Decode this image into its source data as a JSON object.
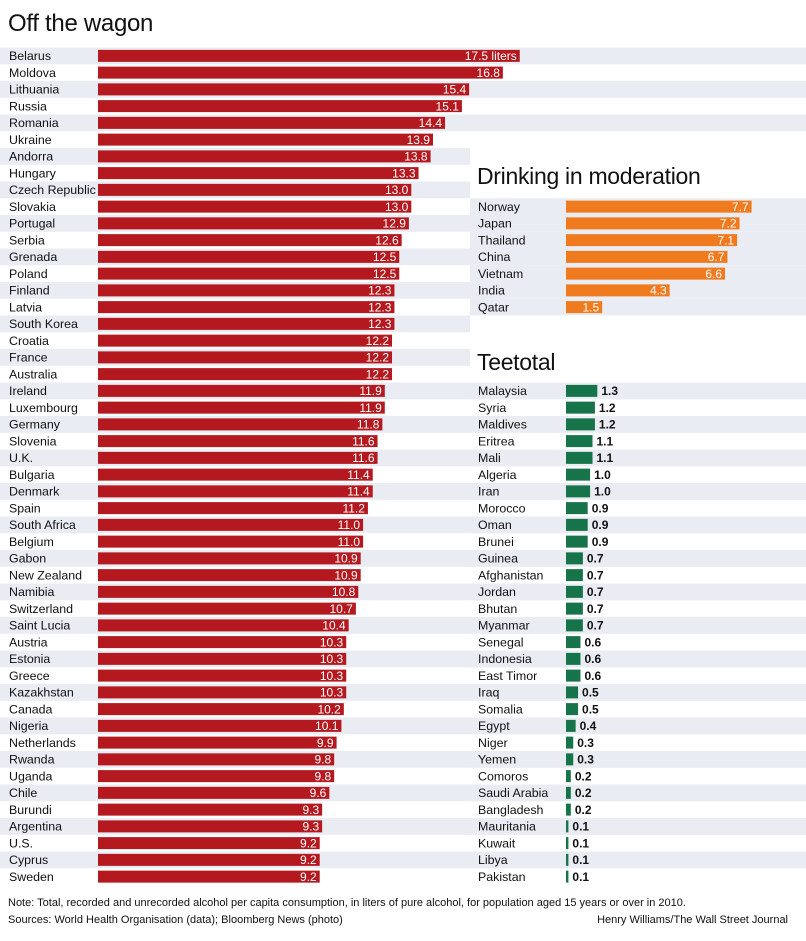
{
  "header": {
    "title": "Off the wagon"
  },
  "chart_data": [
    {
      "type": "bar",
      "orientation": "horizontal",
      "title": "Off the wagon",
      "unit_label": "liters",
      "color": "#b3191e",
      "xlim": [
        0,
        20
      ],
      "categories": [
        "Belarus",
        "Moldova",
        "Lithuania",
        "Russia",
        "Romania",
        "Ukraine",
        "Andorra",
        "Hungary",
        "Czech Republic",
        "Slovakia",
        "Portugal",
        "Serbia",
        "Grenada",
        "Poland",
        "Finland",
        "Latvia",
        "South Korea",
        "Croatia",
        "France",
        "Australia",
        "Ireland",
        "Luxembourg",
        "Germany",
        "Slovenia",
        "U.K.",
        "Bulgaria",
        "Denmark",
        "Spain",
        "South Africa",
        "Belgium",
        "Gabon",
        "New Zealand",
        "Namibia",
        "Switzerland",
        "Saint Lucia",
        "Austria",
        "Estonia",
        "Greece",
        "Kazakhstan",
        "Canada",
        "Nigeria",
        "Netherlands",
        "Rwanda",
        "Uganda",
        "Chile",
        "Burundi",
        "Argentina",
        "U.S.",
        "Cyprus",
        "Sweden"
      ],
      "values": [
        17.5,
        16.8,
        15.4,
        15.1,
        14.4,
        13.9,
        13.8,
        13.3,
        13.0,
        13.0,
        12.9,
        12.6,
        12.5,
        12.5,
        12.3,
        12.3,
        12.3,
        12.2,
        12.2,
        12.2,
        11.9,
        11.9,
        11.8,
        11.6,
        11.6,
        11.4,
        11.4,
        11.2,
        11.0,
        11.0,
        10.9,
        10.9,
        10.8,
        10.7,
        10.4,
        10.3,
        10.3,
        10.3,
        10.3,
        10.2,
        10.1,
        9.9,
        9.8,
        9.8,
        9.6,
        9.3,
        9.3,
        9.2,
        9.2,
        9.2
      ],
      "labels": [
        "17.5 liters",
        "16.8",
        "15.4",
        "15.1",
        "14.4",
        "13.9",
        "13.8",
        "13.3",
        "13.0",
        "13.0",
        "12.9",
        "12.6",
        "12.5",
        "12.5",
        "12.3",
        "12.3",
        "12.3",
        "12.2",
        "12.2",
        "12.2",
        "11.9",
        "11.9",
        "11.8",
        "11.6",
        "11.6",
        "11.4",
        "11.4",
        "11.2",
        "11.0",
        "11.0",
        "10.9",
        "10.9",
        "10.8",
        "10.7",
        "10.4",
        "10.3",
        "10.3",
        "10.3",
        "10.3",
        "10.2",
        "10.1",
        "9.9",
        "9.8",
        "9.8",
        "9.6",
        "9.3",
        "9.3",
        "9.2",
        "9.2",
        "9.2"
      ],
      "label_position": "inside-end"
    },
    {
      "type": "bar",
      "orientation": "horizontal",
      "title": "Drinking in moderation",
      "color": "#f07a1e",
      "xlim": [
        0,
        20
      ],
      "categories": [
        "Norway",
        "Japan",
        "Thailand",
        "China",
        "Vietnam",
        "India",
        "Qatar"
      ],
      "values": [
        7.7,
        7.2,
        7.1,
        6.7,
        6.6,
        4.3,
        1.5
      ],
      "labels": [
        "7.7",
        "7.2",
        "7.1",
        "6.7",
        "6.6",
        "4.3",
        "1.5"
      ],
      "label_position": "inside-end"
    },
    {
      "type": "bar",
      "orientation": "horizontal",
      "title": "Teetotal",
      "color": "#17744a",
      "xlim": [
        0,
        20
      ],
      "categories": [
        "Malaysia",
        "Syria",
        "Maldives",
        "Eritrea",
        "Mali",
        "Algeria",
        "Iran",
        "Morocco",
        "Oman",
        "Brunei",
        "Guinea",
        "Afghanistan",
        "Jordan",
        "Bhutan",
        "Myanmar",
        "Senegal",
        "Indonesia",
        "East Timor",
        "Iraq",
        "Somalia",
        "Egypt",
        "Niger",
        "Yemen",
        "Comoros",
        "Saudi Arabia",
        "Bangladesh",
        "Mauritania",
        "Kuwait",
        "Libya",
        "Pakistan"
      ],
      "values": [
        1.3,
        1.2,
        1.2,
        1.1,
        1.1,
        1.0,
        1.0,
        0.9,
        0.9,
        0.9,
        0.7,
        0.7,
        0.7,
        0.7,
        0.7,
        0.6,
        0.6,
        0.6,
        0.5,
        0.5,
        0.4,
        0.3,
        0.3,
        0.2,
        0.2,
        0.2,
        0.1,
        0.1,
        0.1,
        0.1
      ],
      "labels": [
        "1.3",
        "1.2",
        "1.2",
        "1.1",
        "1.1",
        "1.0",
        "1.0",
        "0.9",
        "0.9",
        "0.9",
        "0.7",
        "0.7",
        "0.7",
        "0.7",
        "0.7",
        "0.6",
        "0.6",
        "0.6",
        "0.5",
        "0.5",
        "0.4",
        "0.3",
        "0.3",
        "0.2",
        "0.2",
        "0.2",
        "0.1",
        "0.1",
        "0.1",
        "0.1"
      ],
      "label_position": "outside-end"
    }
  ],
  "footer": {
    "note": "Note: Total, recorded and unrecorded alcohol per capita consumption, in liters of pure alcohol, for population aged 15 years or over in 2010.",
    "sources": "Sources: World Health Organisation (data); Bloomberg News (photo)",
    "credit": "Henry Williams/The Wall Street Journal"
  },
  "colors": {
    "stripe": "#e9ecf3",
    "background": "#ffffff",
    "red": "#b3191e",
    "orange": "#f07a1e",
    "green": "#17744a"
  }
}
